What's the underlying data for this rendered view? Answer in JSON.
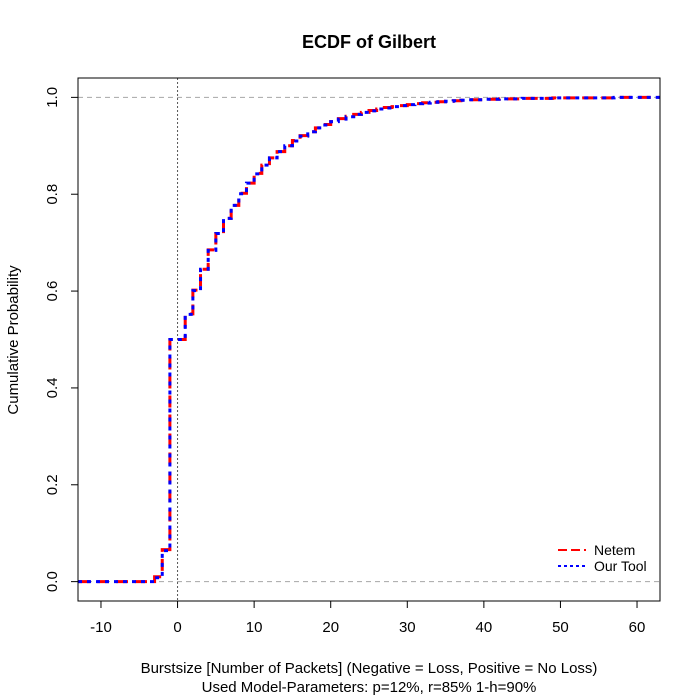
{
  "chart_data": {
    "type": "line",
    "title": "ECDF of Gilbert",
    "xlabel": "Burstsize [Number of Packets] (Negative = Loss, Positive = No Loss)",
    "subtitle": "Used Model-Parameters: p=12%, r=85% 1-h=90%",
    "ylabel": "Cumulative Probability",
    "xlim": [
      -13,
      63
    ],
    "ylim": [
      -0.04,
      1.04
    ],
    "x_ticks": [
      -10,
      0,
      10,
      20,
      30,
      40,
      50,
      60
    ],
    "x_tick_labels": [
      "-10",
      "0",
      "10",
      "20",
      "30",
      "40",
      "50",
      "60"
    ],
    "y_ticks": [
      0.0,
      0.2,
      0.4,
      0.6,
      0.8,
      1.0
    ],
    "y_tick_labels": [
      "0.0",
      "0.2",
      "0.4",
      "0.6",
      "0.8",
      "1.0"
    ],
    "grid": false,
    "reference_lines": {
      "horizontal": [
        0,
        1
      ],
      "vertical": [
        0
      ]
    },
    "legend_position": "bottom-right",
    "series": [
      {
        "name": "Netem",
        "color": "#ff0000",
        "style": "dashed",
        "x": [
          -13,
          -3,
          -2,
          -1,
          0,
          1,
          2,
          3,
          4,
          5,
          6,
          7,
          8,
          9,
          10,
          11,
          12,
          13,
          14,
          15,
          16,
          17,
          18,
          19,
          20,
          21,
          22,
          23,
          24,
          25,
          26,
          27,
          28,
          29,
          30,
          31,
          32,
          33,
          34,
          35,
          36,
          37,
          38,
          39,
          40,
          41,
          42,
          43,
          44,
          45,
          46,
          47,
          48,
          49,
          50,
          51,
          52,
          53,
          54,
          55,
          56,
          57,
          58,
          59,
          60,
          61,
          62,
          63
        ],
        "y": [
          0.0,
          0.01,
          0.066,
          0.5,
          0.5,
          0.553,
          0.602,
          0.645,
          0.685,
          0.719,
          0.75,
          0.777,
          0.802,
          0.823,
          0.843,
          0.86,
          0.875,
          0.888,
          0.9,
          0.911,
          0.921,
          0.929,
          0.937,
          0.944,
          0.95,
          0.956,
          0.961,
          0.965,
          0.969,
          0.973,
          0.976,
          0.979,
          0.981,
          0.983,
          0.985,
          0.987,
          0.989,
          0.99,
          0.991,
          0.992,
          0.993,
          0.994,
          0.995,
          0.995,
          0.996,
          0.996,
          0.997,
          0.997,
          0.997,
          0.998,
          0.998,
          0.998,
          0.998,
          0.999,
          0.999,
          0.999,
          0.999,
          0.999,
          0.999,
          0.999,
          0.999,
          1.0,
          1.0,
          1.0,
          1.0,
          1.0,
          1.0,
          1.0
        ]
      },
      {
        "name": "Our Tool",
        "color": "#0000ff",
        "style": "dotted",
        "x": [
          -13,
          -3,
          -2,
          -1,
          0,
          1,
          2,
          3,
          4,
          5,
          6,
          7,
          8,
          9,
          10,
          11,
          12,
          13,
          14,
          15,
          16,
          17,
          18,
          19,
          20,
          21,
          22,
          23,
          24,
          25,
          26,
          27,
          28,
          29,
          30,
          31,
          32,
          33,
          34,
          35,
          36,
          37,
          38,
          39,
          40,
          41,
          42,
          43,
          44,
          45,
          46,
          47,
          48,
          49,
          50,
          51,
          52,
          53,
          54,
          55,
          56,
          57,
          58,
          59,
          60,
          61,
          62,
          63
        ],
        "y": [
          0.0,
          0.008,
          0.064,
          0.5,
          0.5,
          0.552,
          0.601,
          0.645,
          0.684,
          0.719,
          0.75,
          0.777,
          0.801,
          0.823,
          0.842,
          0.86,
          0.875,
          0.888,
          0.9,
          0.91,
          0.92,
          0.929,
          0.937,
          0.943,
          0.95,
          0.955,
          0.96,
          0.965,
          0.969,
          0.972,
          0.976,
          0.978,
          0.981,
          0.983,
          0.985,
          0.987,
          0.988,
          0.99,
          0.991,
          0.992,
          0.993,
          0.994,
          0.995,
          0.995,
          0.996,
          0.996,
          0.997,
          0.997,
          0.997,
          0.998,
          0.998,
          0.998,
          0.998,
          0.999,
          0.999,
          0.999,
          0.999,
          0.999,
          0.999,
          0.999,
          0.999,
          1.0,
          1.0,
          1.0,
          1.0,
          1.0,
          1.0,
          1.0
        ]
      }
    ]
  }
}
